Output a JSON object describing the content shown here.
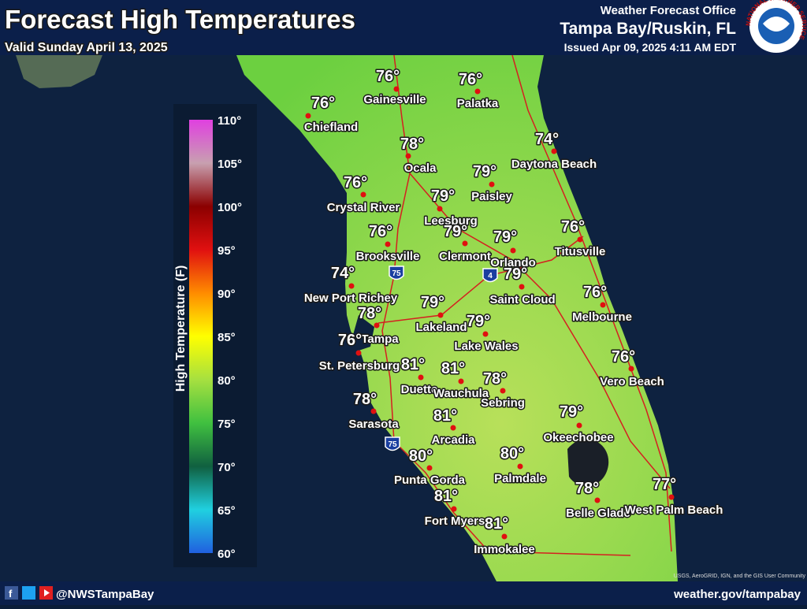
{
  "header": {
    "title": "Forecast High Temperatures",
    "valid": "Valid Sunday April 13, 2025",
    "office": "Weather Forecast Office",
    "location": "Tampa Bay/Ruskin, FL",
    "issued": "Issued Apr 09, 2025 4:11 AM EDT",
    "logo_text": "NATIONAL WEATHER SERVICE"
  },
  "legend": {
    "axis_title": "High Temperature (F)",
    "labels": [
      "110°",
      "105°",
      "100°",
      "95°",
      "90°",
      "85°",
      "80°",
      "75°",
      "70°",
      "65°",
      "60°"
    ]
  },
  "cities": [
    {
      "name": "Gainesville",
      "temp": "76°"
    },
    {
      "name": "Palatka",
      "temp": "76°"
    },
    {
      "name": "Chiefland",
      "temp": "76°"
    },
    {
      "name": "Daytona Beach",
      "temp": "74°"
    },
    {
      "name": "Ocala",
      "temp": "78°"
    },
    {
      "name": "Paisley",
      "temp": "79°"
    },
    {
      "name": "Crystal River",
      "temp": "76°"
    },
    {
      "name": "Leesburg",
      "temp": "79°"
    },
    {
      "name": "Titusville",
      "temp": "76°"
    },
    {
      "name": "Clermont",
      "temp": "79°"
    },
    {
      "name": "Orlando",
      "temp": "79°"
    },
    {
      "name": "Brooksville",
      "temp": "76°"
    },
    {
      "name": "Saint Cloud",
      "temp": "79°"
    },
    {
      "name": "New Port Richey",
      "temp": "74°"
    },
    {
      "name": "Melbourne",
      "temp": "76°"
    },
    {
      "name": "Lakeland",
      "temp": "79°"
    },
    {
      "name": "Tampa",
      "temp": "78°"
    },
    {
      "name": "Lake Wales",
      "temp": "79°"
    },
    {
      "name": "St. Petersburg",
      "temp": "76°"
    },
    {
      "name": "Vero Beach",
      "temp": "76°"
    },
    {
      "name": "Duette",
      "temp": "81°"
    },
    {
      "name": "Wauchula",
      "temp": "81°"
    },
    {
      "name": "Sebring",
      "temp": "78°"
    },
    {
      "name": "Sarasota",
      "temp": "78°"
    },
    {
      "name": "Okeechobee",
      "temp": "79°"
    },
    {
      "name": "Arcadia",
      "temp": "81°"
    },
    {
      "name": "Punta Gorda",
      "temp": "80°"
    },
    {
      "name": "Palmdale",
      "temp": "80°"
    },
    {
      "name": "Belle Glade",
      "temp": "78°"
    },
    {
      "name": "West Palm Beach",
      "temp": "77°"
    },
    {
      "name": "Fort Myers",
      "temp": "81°"
    },
    {
      "name": "Immokalee",
      "temp": "81°"
    }
  ],
  "highways": [
    "75",
    "4",
    "75"
  ],
  "attribution": "USGS, AeroGRID, IGN, and the GIS User Community",
  "footer": {
    "handle": "@NWSTampaBay",
    "website": "weather.gov/tampabay"
  }
}
